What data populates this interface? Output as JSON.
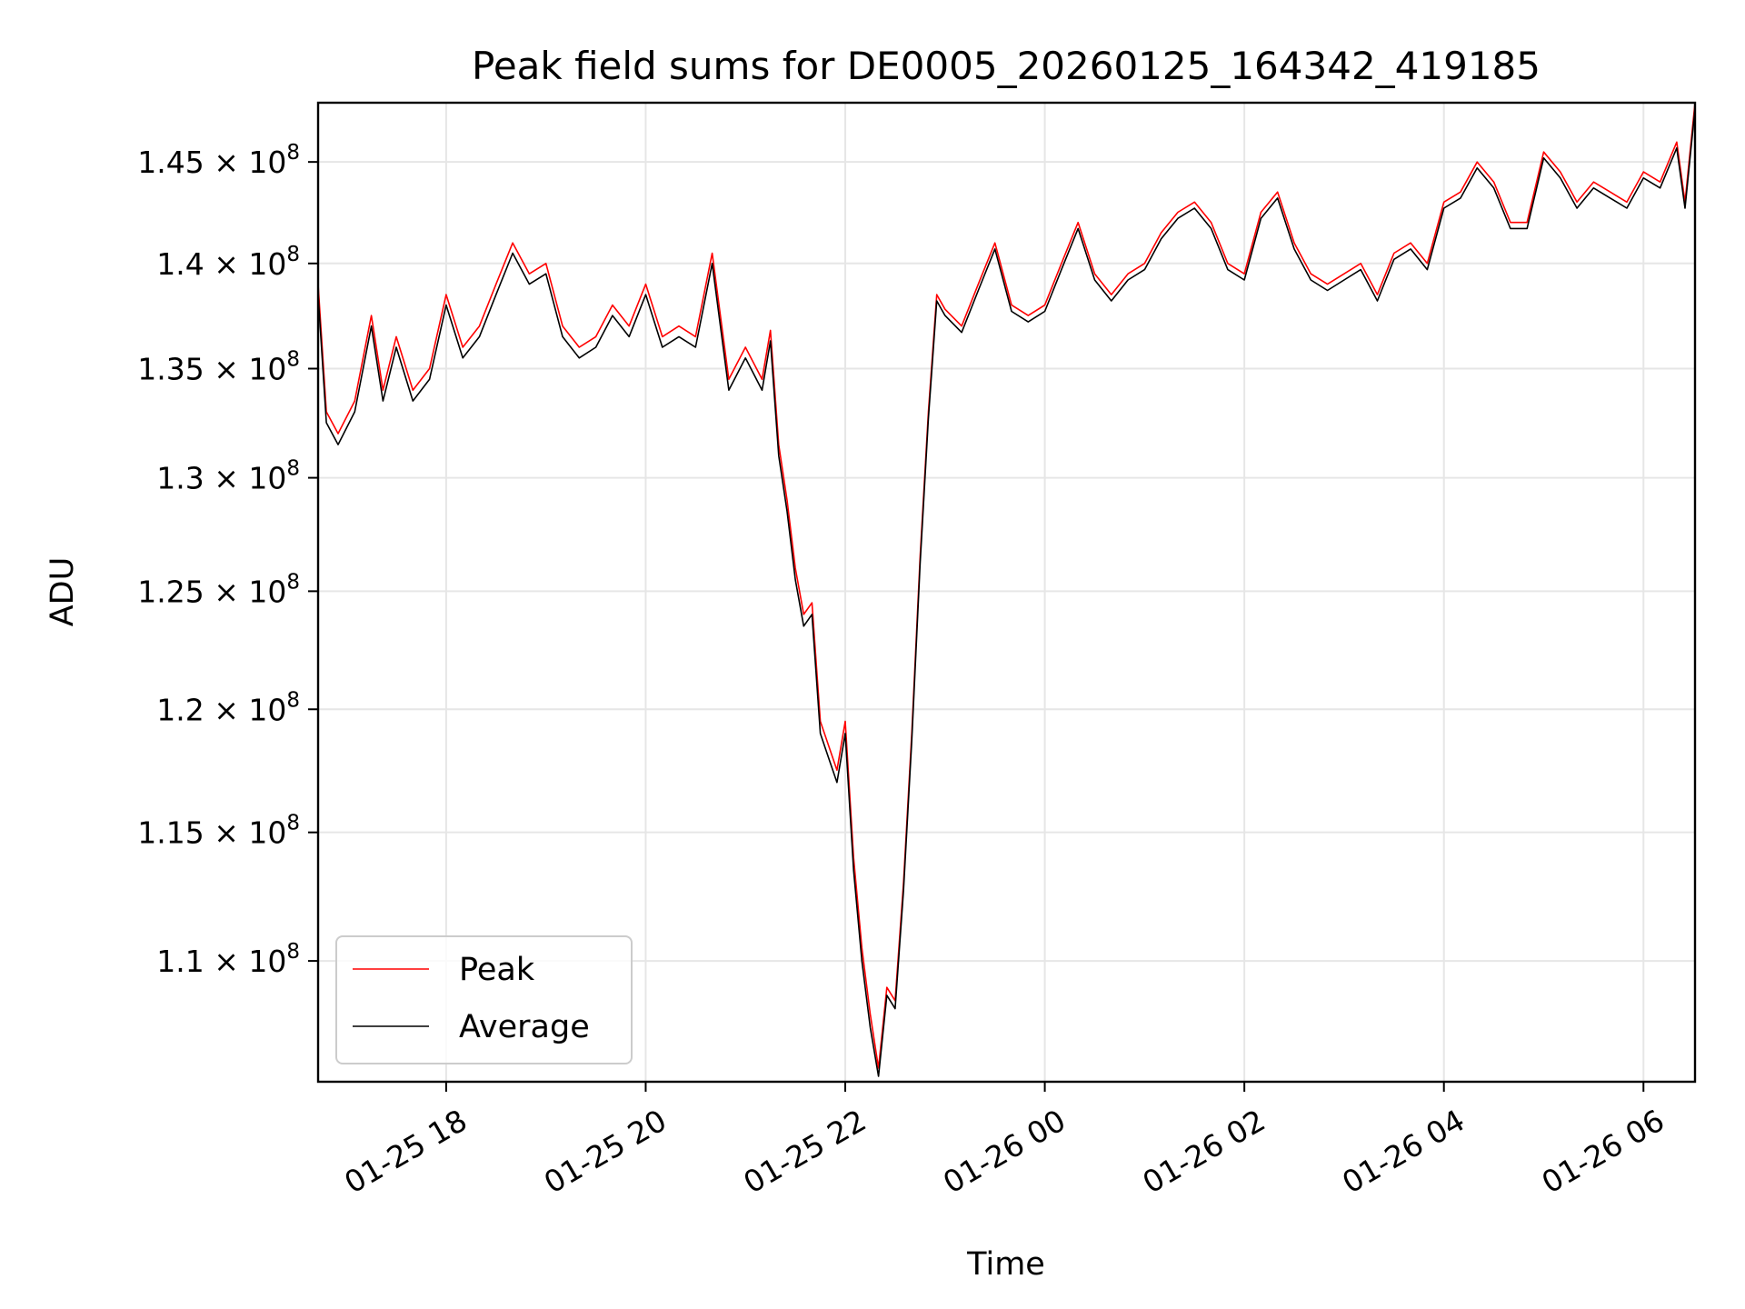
{
  "chart_data": {
    "type": "line",
    "title": "Peak field sums for DE0005_20260125_164342_419185",
    "xlabel": "Time",
    "ylabel": "ADU",
    "xlim": [
      "2026-01-25 16:43",
      "2026-01-26 06:31"
    ],
    "ylim": [
      105500000,
      148000000
    ],
    "y_scale": "log",
    "grid": true,
    "legend_position": "lower-left",
    "xticks": [
      {
        "value": "2026-01-25 18:00",
        "label": "01-25 18"
      },
      {
        "value": "2026-01-25 20:00",
        "label": "01-25 20"
      },
      {
        "value": "2026-01-25 22:00",
        "label": "01-25 22"
      },
      {
        "value": "2026-01-26 00:00",
        "label": "01-26 00"
      },
      {
        "value": "2026-01-26 02:00",
        "label": "01-26 02"
      },
      {
        "value": "2026-01-26 04:00",
        "label": "01-26 04"
      },
      {
        "value": "2026-01-26 06:00",
        "label": "01-26 06"
      }
    ],
    "yticks": [
      {
        "value": 110000000,
        "label": "1.1 × 10",
        "exp": "8"
      },
      {
        "value": 115000000,
        "label": "1.15 × 10",
        "exp": "8"
      },
      {
        "value": 120000000,
        "label": "1.2 × 10",
        "exp": "8"
      },
      {
        "value": 125000000,
        "label": "1.25 × 10",
        "exp": "8"
      },
      {
        "value": 130000000,
        "label": "1.3 × 10",
        "exp": "8"
      },
      {
        "value": 135000000,
        "label": "1.35 × 10",
        "exp": "8"
      },
      {
        "value": 140000000,
        "label": "1.4 × 10",
        "exp": "8"
      },
      {
        "value": 145000000,
        "label": "1.45 × 10",
        "exp": "8"
      }
    ],
    "series": [
      {
        "name": "Peak",
        "color": "#ff0000",
        "x": [
          "2026-01-25 16:43",
          "2026-01-25 16:48",
          "2026-01-25 16:55",
          "2026-01-25 17:05",
          "2026-01-25 17:15",
          "2026-01-25 17:22",
          "2026-01-25 17:30",
          "2026-01-25 17:40",
          "2026-01-25 17:50",
          "2026-01-25 18:00",
          "2026-01-25 18:10",
          "2026-01-25 18:20",
          "2026-01-25 18:30",
          "2026-01-25 18:40",
          "2026-01-25 18:50",
          "2026-01-25 19:00",
          "2026-01-25 19:10",
          "2026-01-25 19:20",
          "2026-01-25 19:30",
          "2026-01-25 19:40",
          "2026-01-25 19:50",
          "2026-01-25 20:00",
          "2026-01-25 20:10",
          "2026-01-25 20:20",
          "2026-01-25 20:30",
          "2026-01-25 20:40",
          "2026-01-25 20:50",
          "2026-01-25 21:00",
          "2026-01-25 21:10",
          "2026-01-25 21:15",
          "2026-01-25 21:20",
          "2026-01-25 21:25",
          "2026-01-25 21:30",
          "2026-01-25 21:35",
          "2026-01-25 21:40",
          "2026-01-25 21:45",
          "2026-01-25 21:50",
          "2026-01-25 21:55",
          "2026-01-25 22:00",
          "2026-01-25 22:05",
          "2026-01-25 22:10",
          "2026-01-25 22:15",
          "2026-01-25 22:20",
          "2026-01-25 22:25",
          "2026-01-25 22:30",
          "2026-01-25 22:35",
          "2026-01-25 22:40",
          "2026-01-25 22:45",
          "2026-01-25 22:50",
          "2026-01-25 22:55",
          "2026-01-25 23:00",
          "2026-01-25 23:10",
          "2026-01-25 23:20",
          "2026-01-25 23:30",
          "2026-01-25 23:40",
          "2026-01-25 23:50",
          "2026-01-26 00:00",
          "2026-01-26 00:10",
          "2026-01-26 00:20",
          "2026-01-26 00:30",
          "2026-01-26 00:40",
          "2026-01-26 00:50",
          "2026-01-26 01:00",
          "2026-01-26 01:10",
          "2026-01-26 01:20",
          "2026-01-26 01:30",
          "2026-01-26 01:40",
          "2026-01-26 01:50",
          "2026-01-26 02:00",
          "2026-01-26 02:10",
          "2026-01-26 02:20",
          "2026-01-26 02:30",
          "2026-01-26 02:40",
          "2026-01-26 02:50",
          "2026-01-26 03:00",
          "2026-01-26 03:10",
          "2026-01-26 03:20",
          "2026-01-26 03:30",
          "2026-01-26 03:40",
          "2026-01-26 03:50",
          "2026-01-26 04:00",
          "2026-01-26 04:10",
          "2026-01-26 04:20",
          "2026-01-26 04:30",
          "2026-01-26 04:40",
          "2026-01-26 04:50",
          "2026-01-26 05:00",
          "2026-01-26 05:10",
          "2026-01-26 05:20",
          "2026-01-26 05:30",
          "2026-01-26 05:40",
          "2026-01-26 05:50",
          "2026-01-26 06:00",
          "2026-01-26 06:10",
          "2026-01-26 06:20",
          "2026-01-26 06:25",
          "2026-01-26 06:31"
        ],
        "y": [
          139000000,
          133000000,
          132000000,
          133500000,
          137500000,
          134000000,
          136500000,
          134000000,
          135000000,
          138500000,
          136000000,
          137000000,
          139000000,
          141000000,
          139500000,
          140000000,
          137000000,
          136000000,
          136500000,
          138000000,
          137000000,
          139000000,
          136500000,
          137000000,
          136500000,
          140500000,
          134500000,
          136000000,
          134500000,
          136800000,
          131500000,
          129000000,
          126000000,
          124000000,
          124500000,
          119500000,
          118500000,
          117500000,
          119500000,
          114000000,
          110500000,
          108000000,
          106000000,
          109000000,
          108500000,
          113000000,
          119000000,
          126500000,
          133000000,
          138500000,
          137800000,
          137000000,
          139000000,
          141000000,
          138000000,
          137500000,
          138000000,
          140000000,
          142000000,
          139500000,
          138500000,
          139500000,
          140000000,
          141500000,
          142500000,
          143000000,
          142000000,
          140000000,
          139500000,
          142500000,
          143500000,
          141000000,
          139500000,
          139000000,
          139500000,
          140000000,
          138500000,
          140500000,
          141000000,
          140000000,
          143000000,
          143500000,
          145000000,
          144000000,
          142000000,
          142000000,
          145500000,
          144500000,
          143000000,
          144000000,
          143500000,
          143000000,
          144500000,
          144000000,
          146000000,
          143000000,
          148000000
        ]
      },
      {
        "name": "Average",
        "color": "#000000",
        "x": [
          "2026-01-25 16:43",
          "2026-01-25 16:48",
          "2026-01-25 16:55",
          "2026-01-25 17:05",
          "2026-01-25 17:15",
          "2026-01-25 17:22",
          "2026-01-25 17:30",
          "2026-01-25 17:40",
          "2026-01-25 17:50",
          "2026-01-25 18:00",
          "2026-01-25 18:10",
          "2026-01-25 18:20",
          "2026-01-25 18:30",
          "2026-01-25 18:40",
          "2026-01-25 18:50",
          "2026-01-25 19:00",
          "2026-01-25 19:10",
          "2026-01-25 19:20",
          "2026-01-25 19:30",
          "2026-01-25 19:40",
          "2026-01-25 19:50",
          "2026-01-25 20:00",
          "2026-01-25 20:10",
          "2026-01-25 20:20",
          "2026-01-25 20:30",
          "2026-01-25 20:40",
          "2026-01-25 20:50",
          "2026-01-25 21:00",
          "2026-01-25 21:10",
          "2026-01-25 21:15",
          "2026-01-25 21:20",
          "2026-01-25 21:25",
          "2026-01-25 21:30",
          "2026-01-25 21:35",
          "2026-01-25 21:40",
          "2026-01-25 21:45",
          "2026-01-25 21:50",
          "2026-01-25 21:55",
          "2026-01-25 22:00",
          "2026-01-25 22:05",
          "2026-01-25 22:10",
          "2026-01-25 22:15",
          "2026-01-25 22:20",
          "2026-01-25 22:25",
          "2026-01-25 22:30",
          "2026-01-25 22:35",
          "2026-01-25 22:40",
          "2026-01-25 22:45",
          "2026-01-25 22:50",
          "2026-01-25 22:55",
          "2026-01-25 23:00",
          "2026-01-25 23:10",
          "2026-01-25 23:20",
          "2026-01-25 23:30",
          "2026-01-25 23:40",
          "2026-01-25 23:50",
          "2026-01-26 00:00",
          "2026-01-26 00:10",
          "2026-01-26 00:20",
          "2026-01-26 00:30",
          "2026-01-26 00:40",
          "2026-01-26 00:50",
          "2026-01-26 01:00",
          "2026-01-26 01:10",
          "2026-01-26 01:20",
          "2026-01-26 01:30",
          "2026-01-26 01:40",
          "2026-01-26 01:50",
          "2026-01-26 02:00",
          "2026-01-26 02:10",
          "2026-01-26 02:20",
          "2026-01-26 02:30",
          "2026-01-26 02:40",
          "2026-01-26 02:50",
          "2026-01-26 03:00",
          "2026-01-26 03:10",
          "2026-01-26 03:20",
          "2026-01-26 03:30",
          "2026-01-26 03:40",
          "2026-01-26 03:50",
          "2026-01-26 04:00",
          "2026-01-26 04:10",
          "2026-01-26 04:20",
          "2026-01-26 04:30",
          "2026-01-26 04:40",
          "2026-01-26 04:50",
          "2026-01-26 05:00",
          "2026-01-26 05:10",
          "2026-01-26 05:20",
          "2026-01-26 05:30",
          "2026-01-26 05:40",
          "2026-01-26 05:50",
          "2026-01-26 06:00",
          "2026-01-26 06:10",
          "2026-01-26 06:20",
          "2026-01-26 06:25",
          "2026-01-26 06:31"
        ],
        "y": [
          138500000,
          132500000,
          131500000,
          133000000,
          137000000,
          133500000,
          136000000,
          133500000,
          134500000,
          138000000,
          135500000,
          136500000,
          138500000,
          140500000,
          139000000,
          139500000,
          136500000,
          135500000,
          136000000,
          137500000,
          136500000,
          138500000,
          136000000,
          136500000,
          136000000,
          140000000,
          134000000,
          135500000,
          134000000,
          136300000,
          131000000,
          128500000,
          125500000,
          123500000,
          124000000,
          119000000,
          118000000,
          117000000,
          119000000,
          113500000,
          110000000,
          107500000,
          105700000,
          108700000,
          108200000,
          112700000,
          118700000,
          126200000,
          132700000,
          138200000,
          137500000,
          136700000,
          138700000,
          140700000,
          137700000,
          137200000,
          137700000,
          139700000,
          141700000,
          139200000,
          138200000,
          139200000,
          139700000,
          141200000,
          142200000,
          142700000,
          141700000,
          139700000,
          139200000,
          142200000,
          143200000,
          140700000,
          139200000,
          138700000,
          139200000,
          139700000,
          138200000,
          140200000,
          140700000,
          139700000,
          142700000,
          143200000,
          144700000,
          143700000,
          141700000,
          141700000,
          145200000,
          144200000,
          142700000,
          143700000,
          143200000,
          142700000,
          144200000,
          143700000,
          145700000,
          142700000,
          147700000
        ]
      }
    ]
  }
}
